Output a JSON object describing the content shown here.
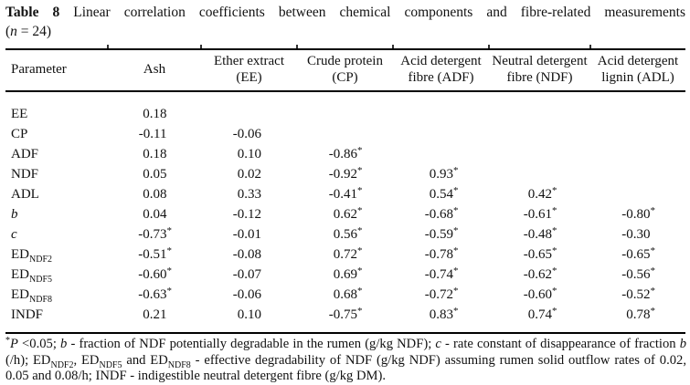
{
  "caption": {
    "line1_bold": "Table 8",
    "line1_rest": " Linear correlation coefficients between chemical components and fibre-related measurements",
    "line2": [
      {
        "t": "("
      },
      {
        "t": "n",
        "s": "i"
      },
      {
        "t": " = 24)"
      }
    ]
  },
  "table": {
    "columns": [
      {
        "l1": "Parameter",
        "l2": ""
      },
      {
        "l1": "Ash",
        "l2": ""
      },
      {
        "l1": "Ether extract",
        "l2": "(EE)"
      },
      {
        "l1": "Crude protein",
        "l2": "(CP)"
      },
      {
        "l1": "Acid detergent",
        "l2": "fibre (ADF)"
      },
      {
        "l1": "Neutral detergent",
        "l2": "fibre (NDF)"
      },
      {
        "l1": "Acid detergent",
        "l2": "lignin (ADL)"
      }
    ],
    "rows": [
      {
        "label": [
          {
            "t": "EE"
          }
        ],
        "cells": [
          "0.18",
          "",
          "",
          "",
          "",
          ""
        ]
      },
      {
        "label": [
          {
            "t": "CP"
          }
        ],
        "cells": [
          "-0.11",
          "-0.06",
          "",
          "",
          "",
          ""
        ]
      },
      {
        "label": [
          {
            "t": "ADF"
          }
        ],
        "cells": [
          "0.18",
          "0.10",
          "-0.86*",
          "",
          "",
          ""
        ]
      },
      {
        "label": [
          {
            "t": "NDF"
          }
        ],
        "cells": [
          "0.05",
          "0.02",
          "-0.92*",
          "0.93*",
          "",
          ""
        ]
      },
      {
        "label": [
          {
            "t": "ADL"
          }
        ],
        "cells": [
          "0.08",
          "0.33",
          "-0.41*",
          "0.54*",
          "0.42*",
          ""
        ]
      },
      {
        "label": [
          {
            "t": "b",
            "s": "i"
          }
        ],
        "cells": [
          "0.04",
          "-0.12",
          "0.62*",
          "-0.68*",
          "-0.61*",
          "-0.80*"
        ]
      },
      {
        "label": [
          {
            "t": "c",
            "s": "i"
          }
        ],
        "cells": [
          "-0.73*",
          "-0.01",
          "0.56*",
          "-0.59*",
          "-0.48*",
          "-0.30"
        ]
      },
      {
        "label": [
          {
            "t": "ED"
          },
          {
            "t": "NDF2",
            "s": "sub"
          }
        ],
        "cells": [
          "-0.51*",
          "-0.08",
          "0.72*",
          "-0.78*",
          "-0.65*",
          "-0.65*"
        ]
      },
      {
        "label": [
          {
            "t": "ED"
          },
          {
            "t": "NDF5",
            "s": "sub"
          }
        ],
        "cells": [
          "-0.60*",
          "-0.07",
          "0.69*",
          "-0.74*",
          "-0.62*",
          "-0.56*"
        ]
      },
      {
        "label": [
          {
            "t": "ED"
          },
          {
            "t": "NDF8",
            "s": "sub"
          }
        ],
        "cells": [
          "-0.63*",
          "-0.06",
          "0.68*",
          "-0.72*",
          "-0.60*",
          "-0.52*"
        ]
      },
      {
        "label": [
          {
            "t": "INDF"
          }
        ],
        "cells": [
          "0.21",
          "0.10",
          "-0.75*",
          "0.83*",
          "0.74*",
          "0.78*"
        ]
      }
    ]
  },
  "footnote": [
    {
      "t": "*",
      "s": "sup"
    },
    {
      "t": "P",
      "s": "i"
    },
    {
      "t": " <0.05; "
    },
    {
      "t": "b",
      "s": "i"
    },
    {
      "t": " - fraction of NDF potentially degradable in the rumen (g/kg NDF); "
    },
    {
      "t": "c",
      "s": "i"
    },
    {
      "t": " - rate constant of disappearance of fraction "
    },
    {
      "t": "b",
      "s": "i"
    },
    {
      "t": " (/h); ED"
    },
    {
      "t": "NDF2",
      "s": "sub"
    },
    {
      "t": ", ED"
    },
    {
      "t": "NDF5",
      "s": "sub"
    },
    {
      "t": " and ED"
    },
    {
      "t": "NDF8",
      "s": "sub"
    },
    {
      "t": " - effective degradability of NDF (g/kg NDF) assuming rumen solid outflow rates of 0.02, 0.05 and 0.08/h; INDF - indigestible neutral detergent fibre (g/kg DM)."
    }
  ]
}
